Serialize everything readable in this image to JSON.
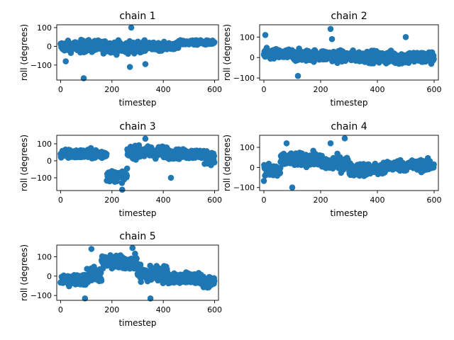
{
  "chart_data": [
    {
      "type": "scatter",
      "title": "chain 1",
      "xlabel": "timestep",
      "ylabel": "roll (degrees)",
      "xlim": [
        -15,
        615
      ],
      "ylim": [
        -180,
        115
      ],
      "xticks": [
        0,
        200,
        400,
        600
      ],
      "yticks": [
        -100,
        0,
        100
      ],
      "marker_color": "#1f77b4",
      "n_points": 600,
      "segments": [
        {
          "x": [
            0,
            60
          ],
          "center": 0,
          "spread": 35
        },
        {
          "x": [
            60,
            200
          ],
          "center": 0,
          "spread": 40
        },
        {
          "x": [
            200,
            330
          ],
          "center": -5,
          "spread": 40
        },
        {
          "x": [
            330,
            460
          ],
          "center": 0,
          "spread": 25
        },
        {
          "x": [
            460,
            600
          ],
          "center": 20,
          "spread": 15
        }
      ],
      "outliers": [
        [
          90,
          -170
        ],
        [
          275,
          100
        ],
        [
          270,
          -110
        ],
        [
          330,
          -95
        ],
        [
          20,
          -80
        ]
      ]
    },
    {
      "type": "scatter",
      "title": "chain 2",
      "xlabel": "timestep",
      "ylabel": "roll (degrees)",
      "xlim": [
        -15,
        615
      ],
      "ylim": [
        -110,
        160
      ],
      "xticks": [
        0,
        200,
        400,
        600
      ],
      "yticks": [
        -100,
        0,
        100
      ],
      "marker_color": "#1f77b4",
      "n_points": 600,
      "segments": [
        {
          "x": [
            0,
            100
          ],
          "center": 15,
          "spread": 35
        },
        {
          "x": [
            100,
            250
          ],
          "center": 10,
          "spread": 35
        },
        {
          "x": [
            250,
            400
          ],
          "center": 5,
          "spread": 35
        },
        {
          "x": [
            400,
            600
          ],
          "center": 0,
          "spread": 40
        }
      ],
      "outliers": [
        [
          235,
          140
        ],
        [
          5,
          110
        ],
        [
          500,
          100
        ],
        [
          120,
          -90
        ],
        [
          240,
          90
        ]
      ]
    },
    {
      "type": "scatter",
      "title": "chain 3",
      "xlabel": "timestep",
      "ylabel": "roll (degrees)",
      "xlim": [
        -15,
        615
      ],
      "ylim": [
        -175,
        150
      ],
      "xticks": [
        0,
        200,
        400,
        600
      ],
      "yticks": [
        -100,
        0,
        100
      ],
      "marker_color": "#1f77b4",
      "n_points": 600,
      "segments": [
        {
          "x": [
            0,
            180
          ],
          "center": 40,
          "spread": 35
        },
        {
          "x": [
            180,
            260
          ],
          "center": -90,
          "spread": 40
        },
        {
          "x": [
            260,
            420
          ],
          "center": 50,
          "spread": 45
        },
        {
          "x": [
            420,
            560
          ],
          "center": 40,
          "spread": 35
        },
        {
          "x": [
            560,
            600
          ],
          "center": 20,
          "spread": 50
        }
      ],
      "outliers": [
        [
          240,
          -170
        ],
        [
          330,
          130
        ],
        [
          430,
          -100
        ]
      ]
    },
    {
      "type": "scatter",
      "title": "chain 4",
      "xlabel": "timestep",
      "ylabel": "roll (degrees)",
      "xlim": [
        -15,
        615
      ],
      "ylim": [
        -115,
        160
      ],
      "xticks": [
        0,
        200,
        400,
        600
      ],
      "yticks": [
        -100,
        0,
        100
      ],
      "marker_color": "#1f77b4",
      "n_points": 600,
      "segments": [
        {
          "x": [
            0,
            60
          ],
          "center": -20,
          "spread": 50
        },
        {
          "x": [
            60,
            200
          ],
          "center": 40,
          "spread": 40
        },
        {
          "x": [
            200,
            300
          ],
          "center": 20,
          "spread": 45
        },
        {
          "x": [
            300,
            430
          ],
          "center": -10,
          "spread": 40
        },
        {
          "x": [
            430,
            600
          ],
          "center": 10,
          "spread": 35
        }
      ],
      "outliers": [
        [
          285,
          145
        ],
        [
          235,
          120
        ],
        [
          100,
          -100
        ],
        [
          80,
          120
        ]
      ]
    },
    {
      "type": "scatter",
      "title": "chain 5",
      "xlabel": "timestep",
      "ylabel": "roll (degrees)",
      "xlim": [
        -15,
        615
      ],
      "ylim": [
        -125,
        160
      ],
      "xticks": [
        0,
        200,
        400,
        600
      ],
      "yticks": [
        -100,
        0,
        100
      ],
      "marker_color": "#1f77b4",
      "n_points": 600,
      "segments": [
        {
          "x": [
            0,
            100
          ],
          "center": -20,
          "spread": 40
        },
        {
          "x": [
            100,
            160
          ],
          "center": 10,
          "spread": 50
        },
        {
          "x": [
            160,
            300
          ],
          "center": 70,
          "spread": 45
        },
        {
          "x": [
            300,
            420
          ],
          "center": 10,
          "spread": 55
        },
        {
          "x": [
            420,
            550
          ],
          "center": -10,
          "spread": 35
        },
        {
          "x": [
            550,
            600
          ],
          "center": -30,
          "spread": 45
        }
      ],
      "outliers": [
        [
          350,
          -115
        ],
        [
          95,
          -115
        ],
        [
          120,
          140
        ],
        [
          280,
          145
        ]
      ]
    }
  ]
}
